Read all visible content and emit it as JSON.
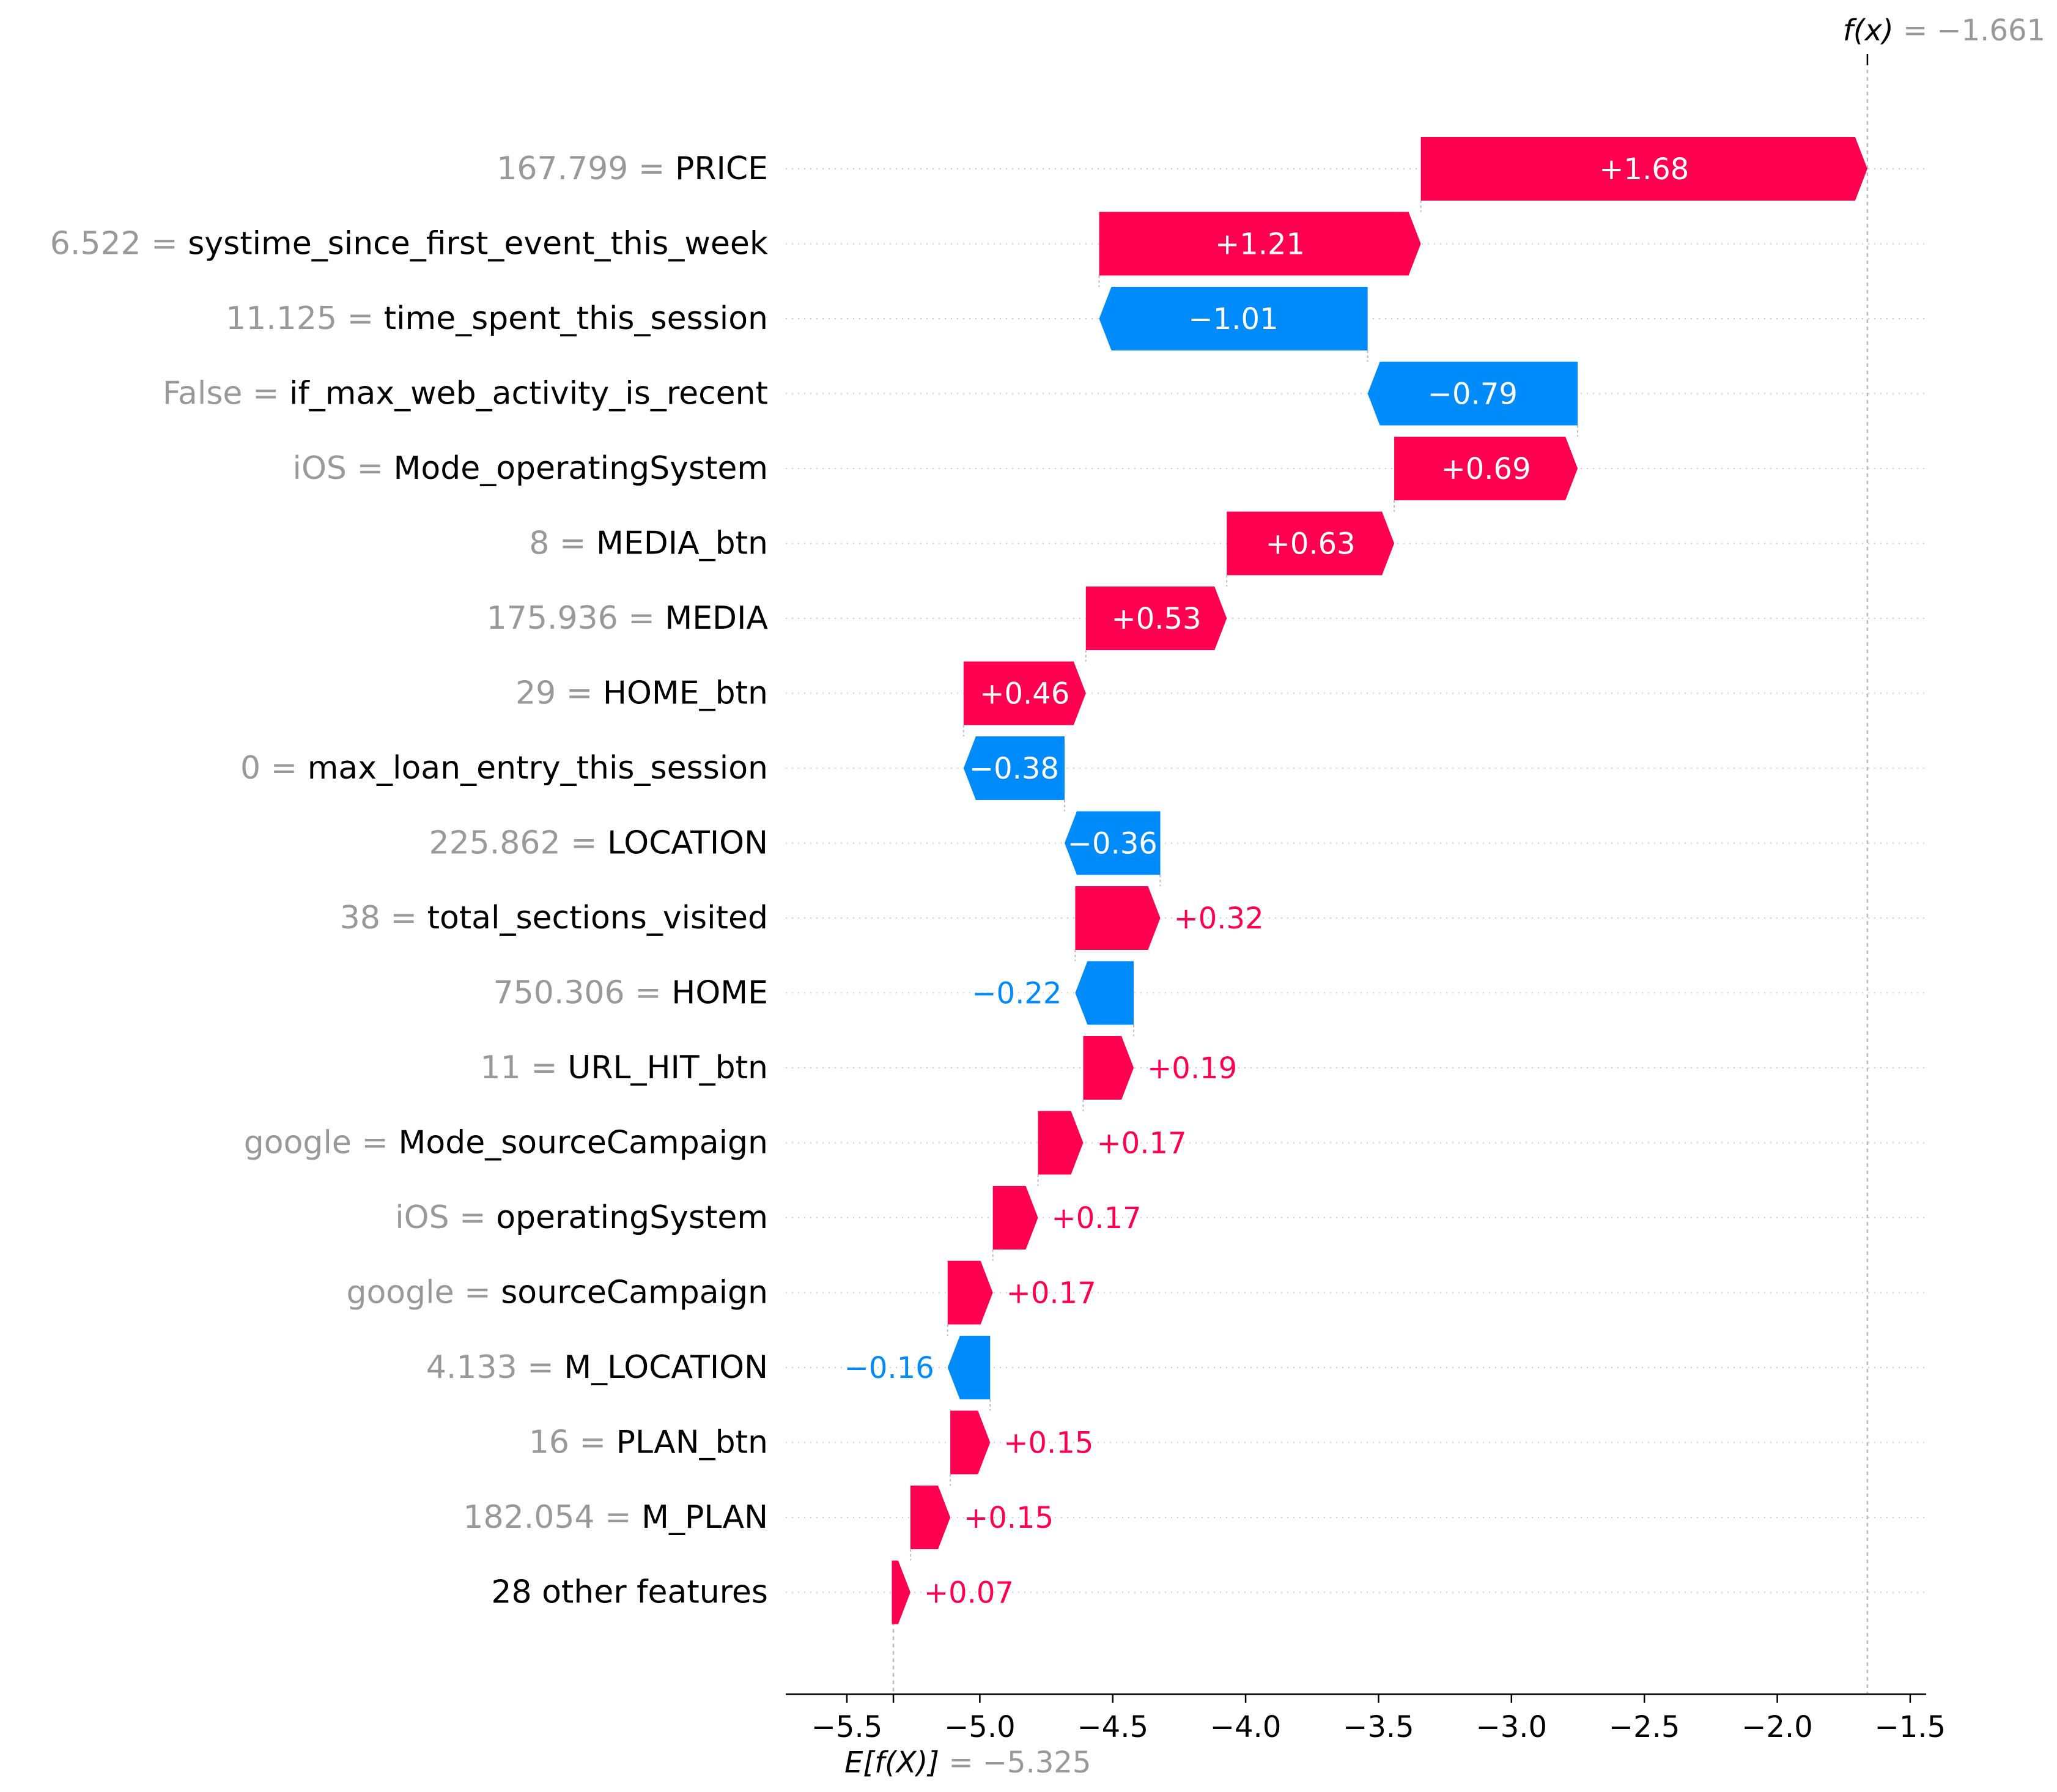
{
  "chart_data": {
    "type": "waterfall",
    "base_value": -5.325,
    "base_value_text": "−5.325",
    "base_label": "E[f(X)]",
    "output_value": -1.661,
    "output_value_text": "−1.661",
    "output_label": "f(x)",
    "xlim": [
      -5.73,
      -1.44
    ],
    "x_ticks": [
      -5.5,
      -5.0,
      -4.5,
      -4.0,
      -3.5,
      -3.0,
      -2.5,
      -2.0,
      -1.5
    ],
    "x_tick_labels": [
      "−5.5",
      "−5.0",
      "−4.5",
      "−4.0",
      "−3.5",
      "−3.0",
      "−2.5",
      "−2.0",
      "−1.5"
    ],
    "colors": {
      "positive": "#ff0051",
      "negative": "#008bfb",
      "value_text": "#999999",
      "grid": "#cccccc"
    },
    "features": [
      {
        "value": "167.799",
        "name": "PRICE",
        "contribution": 1.68,
        "label": "+1.68"
      },
      {
        "value": "6.522",
        "name": "systime_since_first_event_this_week",
        "contribution": 1.21,
        "label": "+1.21"
      },
      {
        "value": "11.125",
        "name": "time_spent_this_session",
        "contribution": -1.01,
        "label": "−1.01"
      },
      {
        "value": "False",
        "name": "if_max_web_activity_is_recent",
        "contribution": -0.79,
        "label": "−0.79"
      },
      {
        "value": "iOS",
        "name": "Mode_operatingSystem",
        "contribution": 0.69,
        "label": "+0.69"
      },
      {
        "value": "8",
        "name": "MEDIA_btn",
        "contribution": 0.63,
        "label": "+0.63"
      },
      {
        "value": "175.936",
        "name": "MEDIA",
        "contribution": 0.53,
        "label": "+0.53"
      },
      {
        "value": "29",
        "name": "HOME_btn",
        "contribution": 0.46,
        "label": "+0.46"
      },
      {
        "value": "0",
        "name": "max_loan_entry_this_session",
        "contribution": -0.38,
        "label": "−0.38"
      },
      {
        "value": "225.862",
        "name": "LOCATION",
        "contribution": -0.36,
        "label": "−0.36"
      },
      {
        "value": "38",
        "name": "total_sections_visited",
        "contribution": 0.32,
        "label": "+0.32"
      },
      {
        "value": "750.306",
        "name": "HOME",
        "contribution": -0.22,
        "label": "−0.22"
      },
      {
        "value": "11",
        "name": "URL_HIT_btn",
        "contribution": 0.19,
        "label": "+0.19"
      },
      {
        "value": "google",
        "name": "Mode_sourceCampaign",
        "contribution": 0.17,
        "label": "+0.17"
      },
      {
        "value": "iOS",
        "name": "operatingSystem",
        "contribution": 0.17,
        "label": "+0.17"
      },
      {
        "value": "google",
        "name": "sourceCampaign",
        "contribution": 0.17,
        "label": "+0.17"
      },
      {
        "value": "4.133",
        "name": "M_LOCATION",
        "contribution": -0.16,
        "label": "−0.16"
      },
      {
        "value": "16",
        "name": "PLAN_btn",
        "contribution": 0.15,
        "label": "+0.15"
      },
      {
        "value": "182.054",
        "name": "M_PLAN",
        "contribution": 0.15,
        "label": "+0.15"
      },
      {
        "value": "",
        "name": "28 other features",
        "contribution": 0.07,
        "label": "+0.07"
      }
    ]
  }
}
